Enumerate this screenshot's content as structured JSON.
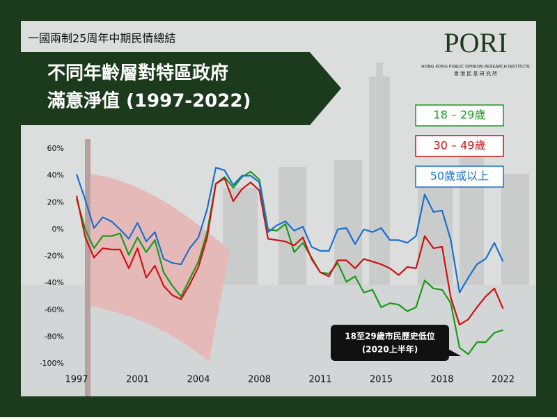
{
  "chart_data": {
    "type": "line",
    "subtitle": "一國兩制25周年中期民情總結",
    "title": [
      "不同年齡層對特區政府",
      "滿意淨值 (1997-2022)"
    ],
    "logo": {
      "name": "PORI",
      "english": "HONG KONG PUBLIC OPINION RESEARCH INSTITUTE",
      "chinese": "香 港 民 意 研 究 所"
    },
    "categories": [
      "1997",
      null,
      null,
      null,
      null,
      null,
      null,
      "2001",
      null,
      null,
      null,
      null,
      null,
      null,
      "2004",
      null,
      null,
      null,
      null,
      null,
      null,
      "2008",
      null,
      null,
      null,
      null,
      null,
      null,
      "2011",
      null,
      null,
      null,
      null,
      null,
      null,
      "2015",
      null,
      null,
      null,
      null,
      null,
      null,
      "2018",
      null,
      null,
      null,
      null,
      null,
      null,
      "2022"
    ],
    "series": [
      {
        "name": "18 – 29歲",
        "color": "#1a9a1a",
        "values": [
          23,
          0,
          -14,
          -5,
          -5,
          -3,
          -19,
          -6,
          -17,
          -8,
          -32,
          -42,
          -50,
          -37,
          -24,
          -2,
          34,
          39,
          31,
          39,
          43,
          37,
          0,
          -1,
          4,
          -17,
          -10,
          -21,
          -32,
          -33,
          -25,
          -39,
          -35,
          -47,
          -45,
          -58,
          -55,
          -56,
          -61,
          -58,
          -38,
          -44,
          -45,
          -55,
          -88,
          -93,
          -84,
          -84,
          -77,
          -75
        ]
      },
      {
        "name": "30 – 49歲",
        "color": "#d01010",
        "values": [
          25,
          -6,
          -21,
          -14,
          -15,
          -15,
          -29,
          -14,
          -36,
          -27,
          -42,
          -49,
          -52,
          -41,
          -28,
          -6,
          34,
          38,
          21,
          30,
          35,
          29,
          -7,
          -8,
          -9,
          -12,
          -6,
          -22,
          -32,
          -35,
          -23,
          -23,
          -29,
          -22,
          -24,
          -26,
          -29,
          -34,
          -28,
          -29,
          -5,
          -14,
          -13,
          -51,
          -71,
          -67,
          -58,
          -50,
          -44,
          -59
        ]
      },
      {
        "name": "50歲或以上",
        "color": "#1a6fd0",
        "values": [
          41,
          22,
          1,
          9,
          6,
          0,
          -7,
          5,
          -9,
          -2,
          -22,
          -25,
          -26,
          -14,
          -6,
          15,
          46,
          44,
          33,
          40,
          40,
          35,
          -2,
          3,
          6,
          -1,
          2,
          -13,
          -16,
          -16,
          0,
          1,
          -11,
          0,
          -2,
          1,
          -8,
          -8,
          -10,
          -5,
          26,
          13,
          14,
          -8,
          -47,
          -36,
          -26,
          -22,
          -10,
          -24
        ]
      }
    ],
    "ylim": [
      -100,
      60
    ],
    "yticks": [
      {
        "value": -100,
        "label": "-100%"
      },
      {
        "value": -80,
        "label": "-80%"
      },
      {
        "value": -60,
        "label": "-60%"
      },
      {
        "value": -40,
        "label": "-40%"
      },
      {
        "value": -20,
        "label": "-20%"
      },
      {
        "value": 0,
        "label": "0%"
      },
      {
        "value": 20,
        "label": "20%"
      },
      {
        "value": 40,
        "label": "40%"
      },
      {
        "value": 60,
        "label": "60%"
      }
    ],
    "annotation": [
      "18至29歲市民歷史低位",
      "(2020上半年)"
    ]
  }
}
